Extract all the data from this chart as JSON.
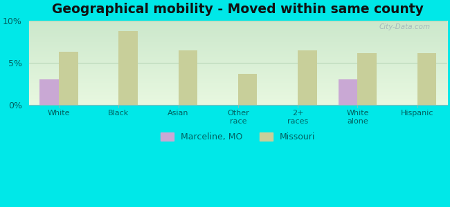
{
  "title": "Geographical mobility - Moved within same county",
  "categories": [
    "White",
    "Black",
    "Asian",
    "Other\nrace",
    "2+\nraces",
    "White\nalone",
    "Hispanic"
  ],
  "marceline_values": [
    3.0,
    0,
    0,
    0,
    0,
    3.0,
    0
  ],
  "missouri_values": [
    6.3,
    8.8,
    6.5,
    3.7,
    6.5,
    6.2,
    6.2
  ],
  "marceline_color": "#c9a8d4",
  "missouri_color": "#c8cf9a",
  "background_top": "#d6edcc",
  "background_bottom": "#e8f8e0",
  "outer_background": "#00e8e8",
  "ylim": [
    0,
    10
  ],
  "yticks": [
    0,
    5,
    10
  ],
  "ytick_labels": [
    "0%",
    "5%",
    "10%"
  ],
  "legend_marceline": "Marceline, MO",
  "legend_missouri": "Missouri",
  "bar_width": 0.32,
  "title_fontsize": 13.5,
  "tick_label_color": "#006060",
  "axis_label_color": "#006060"
}
